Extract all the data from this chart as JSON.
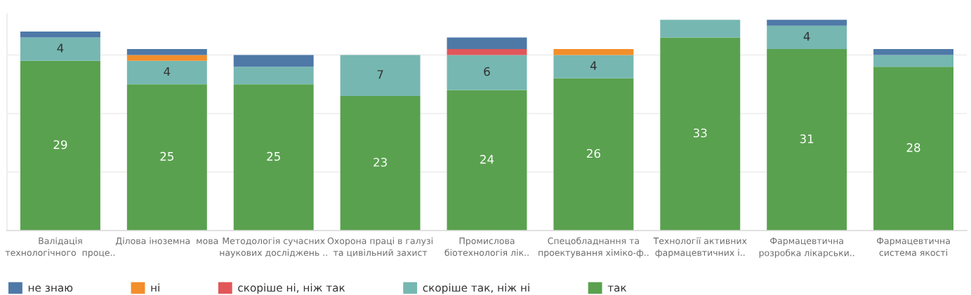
{
  "chart_data": {
    "type": "bar",
    "stacked": true,
    "categories": [
      "Валідація\nтехнологічного  проце..",
      "Ділова іноземна  мова",
      "Методологія сучасних\nнаукових досліджень ..",
      "Охорона праці в галузі\nта цивільний захист",
      "Промислова\nбіотехнологія лік..",
      "Спецобладнання та\nпроектування хіміко-ф..",
      "Технології активних\nфармацевтичних і..",
      "Фармацевтична\nрозробка лікарськи..",
      "Фармацевтична\nсистема якості"
    ],
    "series": [
      {
        "name": "так",
        "color": "#59a14f",
        "values": [
          29,
          25,
          25,
          23,
          24,
          26,
          33,
          31,
          28
        ],
        "value_labels": [
          "29",
          "25",
          "25",
          "23",
          "24",
          "26",
          "33",
          "31",
          "28"
        ]
      },
      {
        "name": "скоріше так, ніж ні",
        "color": "#76b7b2",
        "values": [
          4,
          4,
          3,
          7,
          6,
          4,
          3,
          4,
          2
        ],
        "value_labels": [
          "4",
          "4",
          null,
          "7",
          "6",
          "4",
          null,
          "4",
          null
        ]
      },
      {
        "name": "скоріше ні, ніж так",
        "color": "#e15759",
        "values": [
          0,
          0,
          0,
          0,
          1,
          0,
          0,
          0,
          0
        ]
      },
      {
        "name": "ні",
        "color": "#f28e2b",
        "values": [
          0,
          1,
          0,
          0,
          0,
          1,
          0,
          0,
          0
        ]
      },
      {
        "name": "не знаю",
        "color": "#4e79a7",
        "values": [
          1,
          1,
          2,
          0,
          2,
          0,
          0,
          1,
          1
        ]
      }
    ],
    "ylim": [
      0,
      37
    ],
    "yticks": [
      {
        "value": 0,
        "label": null
      },
      {
        "value": 10,
        "label": null
      },
      {
        "value": 20,
        "label": null
      },
      {
        "value": 30,
        "label": null
      }
    ],
    "tick_labels": "x",
    "grid": "y",
    "legend": "bottom"
  }
}
